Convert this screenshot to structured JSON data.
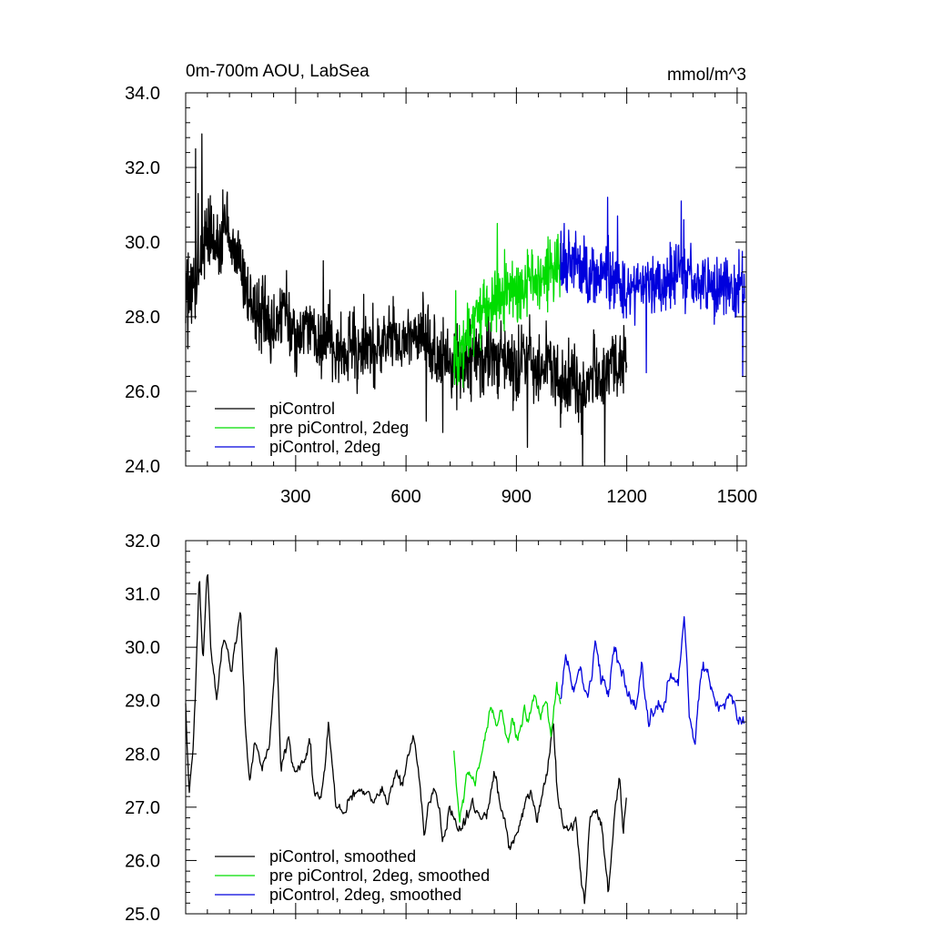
{
  "chart_data": [
    {
      "type": "line",
      "title": "0m-700m AOU, LabSea",
      "units": "mmol/m^3",
      "xlim": [
        1,
        1525
      ],
      "ylim": [
        24,
        34
      ],
      "xticks": [
        300,
        600,
        900,
        1200,
        1500
      ],
      "xtick_labels": [
        "300",
        "600",
        "900",
        "1200",
        "1500"
      ],
      "yticks": [
        24,
        26,
        28,
        30,
        32,
        34
      ],
      "ytick_labels": [
        "24.0",
        "26.0",
        "28.0",
        "30.0",
        "32.0",
        "34.0"
      ],
      "legend": "lower-left",
      "smoothed": false,
      "series": [
        {
          "name": "piControl",
          "color": "#000000",
          "x_start": 1,
          "x_end": 1200,
          "knots": [
            [
              1,
              28.4
            ],
            [
              30,
              29.0
            ],
            [
              60,
              30.3
            ],
            [
              90,
              30.0
            ],
            [
              120,
              30.1
            ],
            [
              150,
              29.3
            ],
            [
              180,
              28.3
            ],
            [
              210,
              28.0
            ],
            [
              240,
              27.6
            ],
            [
              270,
              28.3
            ],
            [
              300,
              27.3
            ],
            [
              330,
              27.8
            ],
            [
              360,
              27.2
            ],
            [
              390,
              27.6
            ],
            [
              420,
              27.0
            ],
            [
              450,
              27.4
            ],
            [
              480,
              26.9
            ],
            [
              510,
              27.2
            ],
            [
              540,
              27.3
            ],
            [
              570,
              27.5
            ],
            [
              600,
              27.3
            ],
            [
              630,
              27.8
            ],
            [
              660,
              27.2
            ],
            [
              690,
              26.6
            ],
            [
              720,
              27.0
            ],
            [
              750,
              26.6
            ],
            [
              780,
              26.9
            ],
            [
              810,
              26.8
            ],
            [
              840,
              27.0
            ],
            [
              870,
              26.5
            ],
            [
              900,
              26.8
            ],
            [
              930,
              27.1
            ],
            [
              960,
              26.5
            ],
            [
              990,
              26.9
            ],
            [
              1020,
              26.1
            ],
            [
              1050,
              26.5
            ],
            [
              1080,
              26.0
            ],
            [
              1110,
              26.6
            ],
            [
              1140,
              26.3
            ],
            [
              1170,
              26.8
            ],
            [
              1200,
              26.9
            ]
          ],
          "noise": 0.85,
          "spikes": [
            [
              28,
              32.5
            ],
            [
              35,
              31.3
            ],
            [
              45,
              32.9
            ],
            [
              58,
              30.9
            ],
            [
              102,
              31.4
            ],
            [
              113,
              31.2
            ],
            [
              260,
              27.3
            ],
            [
              375,
              29.5
            ],
            [
              485,
              28.6
            ],
            [
              640,
              28.1
            ],
            [
              655,
              25.2
            ],
            [
              700,
              24.9
            ],
            [
              930,
              24.5
            ],
            [
              1080,
              24.0
            ],
            [
              1140,
              24.1
            ],
            [
              1170,
              27.5
            ],
            [
              1185,
              27.1
            ]
          ]
        },
        {
          "name": "pre piControl, 2deg",
          "color": "#00dd00",
          "x_start": 730,
          "x_end": 1020,
          "knots": [
            [
              730,
              26.8
            ],
            [
              760,
              27.4
            ],
            [
              790,
              28.0
            ],
            [
              820,
              28.3
            ],
            [
              850,
              28.6
            ],
            [
              880,
              28.8
            ],
            [
              910,
              28.7
            ],
            [
              940,
              29.0
            ],
            [
              970,
              28.9
            ],
            [
              1000,
              29.2
            ],
            [
              1020,
              29.1
            ]
          ],
          "noise": 0.75,
          "spikes": [
            [
              735,
              28.7
            ],
            [
              755,
              26.1
            ],
            [
              848,
              30.5
            ],
            [
              868,
              29.8
            ],
            [
              905,
              29.3
            ],
            [
              1005,
              30.0
            ]
          ]
        },
        {
          "name": "piControl, 2deg",
          "color": "#0000dd",
          "x_start": 1020,
          "x_end": 1520,
          "knots": [
            [
              1020,
              29.3
            ],
            [
              1050,
              29.5
            ],
            [
              1080,
              29.3
            ],
            [
              1110,
              29.0
            ],
            [
              1140,
              29.4
            ],
            [
              1170,
              28.9
            ],
            [
              1200,
              28.7
            ],
            [
              1230,
              28.8
            ],
            [
              1260,
              29.0
            ],
            [
              1290,
              28.9
            ],
            [
              1320,
              29.0
            ],
            [
              1350,
              29.2
            ],
            [
              1380,
              28.9
            ],
            [
              1410,
              29.0
            ],
            [
              1440,
              28.8
            ],
            [
              1470,
              28.8
            ],
            [
              1500,
              28.6
            ],
            [
              1520,
              28.7
            ]
          ],
          "noise": 0.7,
          "spikes": [
            [
              1030,
              30.5
            ],
            [
              1148,
              31.2
            ],
            [
              1175,
              30.7
            ],
            [
              1253,
              26.5
            ],
            [
              1348,
              31.1
            ],
            [
              1355,
              30.6
            ],
            [
              1505,
              29.8
            ],
            [
              1515,
              26.4
            ]
          ]
        }
      ]
    },
    {
      "type": "line",
      "title": "",
      "xlim": [
        1,
        1525
      ],
      "ylim": [
        25,
        32
      ],
      "xticks": [
        300,
        600,
        900,
        1200,
        1500
      ],
      "xtick_labels": [],
      "yticks": [
        25,
        26,
        27,
        28,
        29,
        30,
        31,
        32
      ],
      "ytick_labels": [
        "25.0",
        "26.0",
        "27.0",
        "28.0",
        "29.0",
        "30.0",
        "31.0",
        "32.0"
      ],
      "legend": "lower-left",
      "smoothed": true,
      "series": [
        {
          "name": "piControl, smoothed",
          "color": "#000000",
          "x_start": 1,
          "x_end": 1200,
          "knots": [
            [
              1,
              29.0
            ],
            [
              10,
              27.3
            ],
            [
              20,
              28.0
            ],
            [
              28,
              29.2
            ],
            [
              38,
              31.4
            ],
            [
              48,
              29.6
            ],
            [
              60,
              31.6
            ],
            [
              70,
              30.0
            ],
            [
              85,
              29.0
            ],
            [
              105,
              30.2
            ],
            [
              125,
              29.6
            ],
            [
              150,
              30.7
            ],
            [
              162,
              28.6
            ],
            [
              175,
              27.5
            ],
            [
              190,
              28.1
            ],
            [
              210,
              27.8
            ],
            [
              230,
              28.3
            ],
            [
              248,
              30.2
            ],
            [
              260,
              27.7
            ],
            [
              280,
              28.2
            ],
            [
              300,
              27.6
            ],
            [
              320,
              27.9
            ],
            [
              340,
              28.2
            ],
            [
              350,
              27.3
            ],
            [
              365,
              27.2
            ],
            [
              375,
              27.5
            ],
            [
              390,
              28.6
            ],
            [
              410,
              27.0
            ],
            [
              430,
              26.9
            ],
            [
              450,
              27.2
            ],
            [
              470,
              27.3
            ],
            [
              490,
              27.2
            ],
            [
              510,
              27.1
            ],
            [
              530,
              27.3
            ],
            [
              550,
              27.1
            ],
            [
              570,
              27.7
            ],
            [
              590,
              27.4
            ],
            [
              600,
              27.9
            ],
            [
              620,
              28.3
            ],
            [
              635,
              27.6
            ],
            [
              650,
              26.5
            ],
            [
              665,
              27.2
            ],
            [
              680,
              27.4
            ],
            [
              700,
              26.4
            ],
            [
              720,
              27.0
            ],
            [
              740,
              26.7
            ],
            [
              760,
              26.7
            ],
            [
              780,
              27.0
            ],
            [
              800,
              26.8
            ],
            [
              820,
              26.9
            ],
            [
              840,
              27.6
            ],
            [
              860,
              27.0
            ],
            [
              880,
              26.3
            ],
            [
              900,
              26.4
            ],
            [
              920,
              27.0
            ],
            [
              940,
              27.3
            ],
            [
              955,
              26.8
            ],
            [
              970,
              27.2
            ],
            [
              985,
              27.7
            ],
            [
              1000,
              28.6
            ],
            [
              1010,
              27.4
            ],
            [
              1025,
              26.7
            ],
            [
              1040,
              26.5
            ],
            [
              1060,
              26.8
            ],
            [
              1070,
              26.1
            ],
            [
              1085,
              25.1
            ],
            [
              1100,
              26.8
            ],
            [
              1115,
              27.0
            ],
            [
              1135,
              26.6
            ],
            [
              1150,
              25.3
            ],
            [
              1165,
              26.8
            ],
            [
              1180,
              27.6
            ],
            [
              1190,
              26.5
            ],
            [
              1200,
              27.2
            ]
          ],
          "noise": 0.22,
          "spikes": []
        },
        {
          "name": "pre piControl, 2deg, smoothed",
          "color": "#00dd00",
          "x_start": 730,
          "x_end": 1020,
          "knots": [
            [
              730,
              28.0
            ],
            [
              745,
              26.7
            ],
            [
              765,
              27.6
            ],
            [
              785,
              27.5
            ],
            [
              800,
              27.8
            ],
            [
              815,
              28.3
            ],
            [
              830,
              28.9
            ],
            [
              845,
              28.5
            ],
            [
              860,
              28.9
            ],
            [
              875,
              28.2
            ],
            [
              890,
              28.6
            ],
            [
              905,
              28.3
            ],
            [
              920,
              28.8
            ],
            [
              935,
              28.6
            ],
            [
              950,
              29.1
            ],
            [
              965,
              28.7
            ],
            [
              980,
              29.0
            ],
            [
              995,
              28.4
            ],
            [
              1010,
              29.3
            ],
            [
              1020,
              29.0
            ]
          ],
          "noise": 0.25,
          "spikes": []
        },
        {
          "name": "piControl, 2deg, smoothed",
          "color": "#0000dd",
          "x_start": 1020,
          "x_end": 1520,
          "knots": [
            [
              1020,
              29.0
            ],
            [
              1035,
              29.9
            ],
            [
              1055,
              29.3
            ],
            [
              1075,
              29.6
            ],
            [
              1095,
              29.0
            ],
            [
              1115,
              30.2
            ],
            [
              1130,
              29.4
            ],
            [
              1150,
              29.1
            ],
            [
              1165,
              30.0
            ],
            [
              1185,
              29.6
            ],
            [
              1205,
              29.1
            ],
            [
              1225,
              28.8
            ],
            [
              1240,
              29.6
            ],
            [
              1260,
              28.6
            ],
            [
              1280,
              29.0
            ],
            [
              1300,
              28.9
            ],
            [
              1320,
              29.5
            ],
            [
              1340,
              29.3
            ],
            [
              1355,
              30.7
            ],
            [
              1370,
              28.8
            ],
            [
              1385,
              28.1
            ],
            [
              1400,
              29.5
            ],
            [
              1420,
              29.6
            ],
            [
              1440,
              29.0
            ],
            [
              1460,
              28.8
            ],
            [
              1480,
              29.2
            ],
            [
              1500,
              28.7
            ],
            [
              1520,
              28.5
            ]
          ],
          "noise": 0.25,
          "spikes": []
        }
      ]
    }
  ]
}
